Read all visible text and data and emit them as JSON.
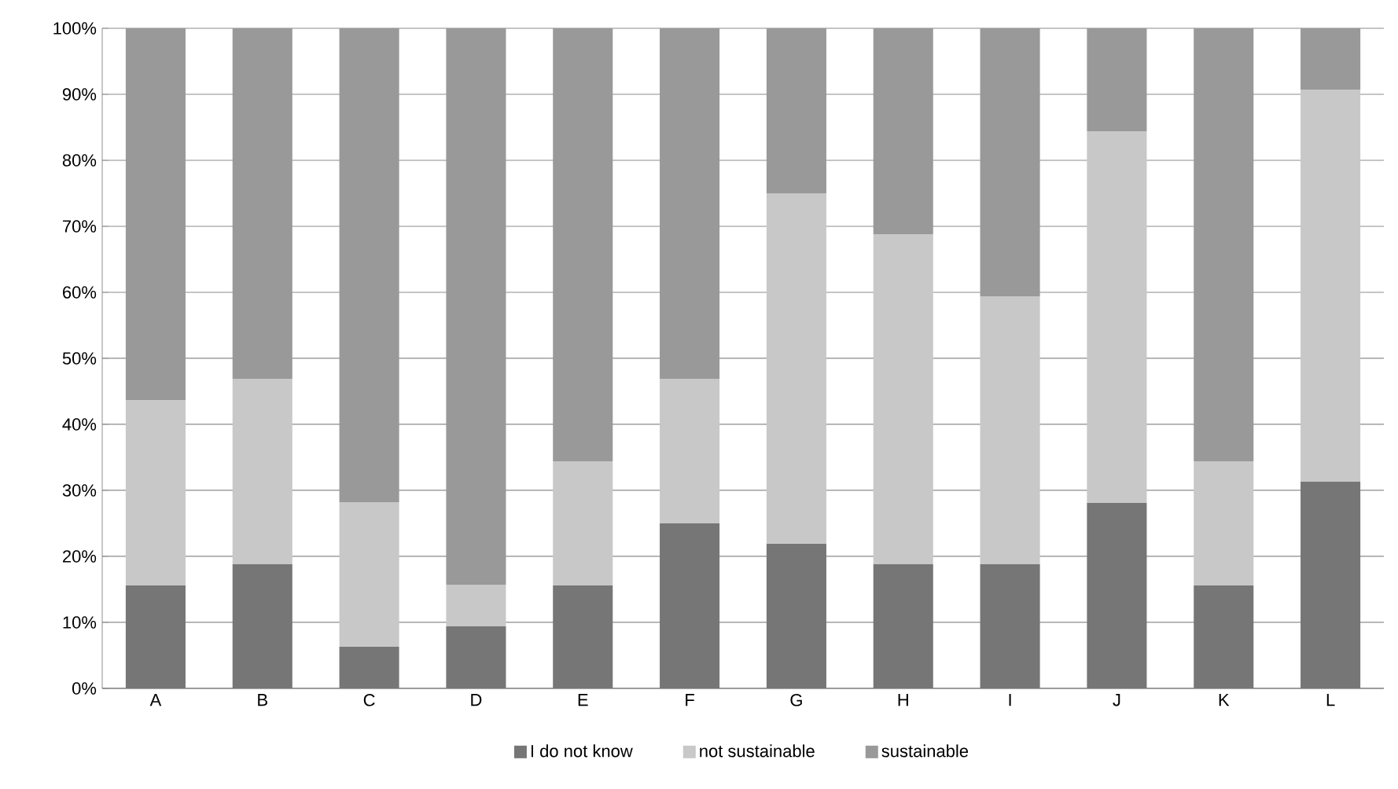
{
  "chart_data": {
    "type": "bar",
    "stacked": true,
    "categories": [
      "A",
      "B",
      "C",
      "D",
      "E",
      "F",
      "G",
      "H",
      "I",
      "J",
      "K",
      "L"
    ],
    "series": [
      {
        "name": "I do not know",
        "color": "#767676",
        "values": [
          15.6,
          18.8,
          6.3,
          9.4,
          15.6,
          25,
          21.9,
          18.8,
          18.8,
          28.1,
          15.6,
          31.3
        ]
      },
      {
        "name": "not sustainable",
        "color": "#c8c8c8",
        "values": [
          28.1,
          28.1,
          21.9,
          6.3,
          18.8,
          21.9,
          53.1,
          50,
          40.6,
          56.3,
          18.8,
          59.4
        ]
      },
      {
        "name": "sustainable",
        "color": "#999999",
        "values": [
          56.3,
          53.1,
          71.8,
          84.3,
          65.6,
          53.1,
          25,
          31.2,
          40.6,
          15.6,
          65.6,
          9.3
        ]
      }
    ],
    "ylim": [
      0,
      100
    ],
    "yticks": [
      {
        "value": 0,
        "label": "0%"
      },
      {
        "value": 10,
        "label": "10%"
      },
      {
        "value": 20,
        "label": "20%"
      },
      {
        "value": 30,
        "label": "30%"
      },
      {
        "value": 40,
        "label": "40%"
      },
      {
        "value": 50,
        "label": "50%"
      },
      {
        "value": 60,
        "label": "60%"
      },
      {
        "value": 70,
        "label": "70%"
      },
      {
        "value": 80,
        "label": "80%"
      },
      {
        "value": 90,
        "label": "90%"
      },
      {
        "value": 100,
        "label": "100%"
      }
    ],
    "grid": "y",
    "legend": "bottom"
  }
}
